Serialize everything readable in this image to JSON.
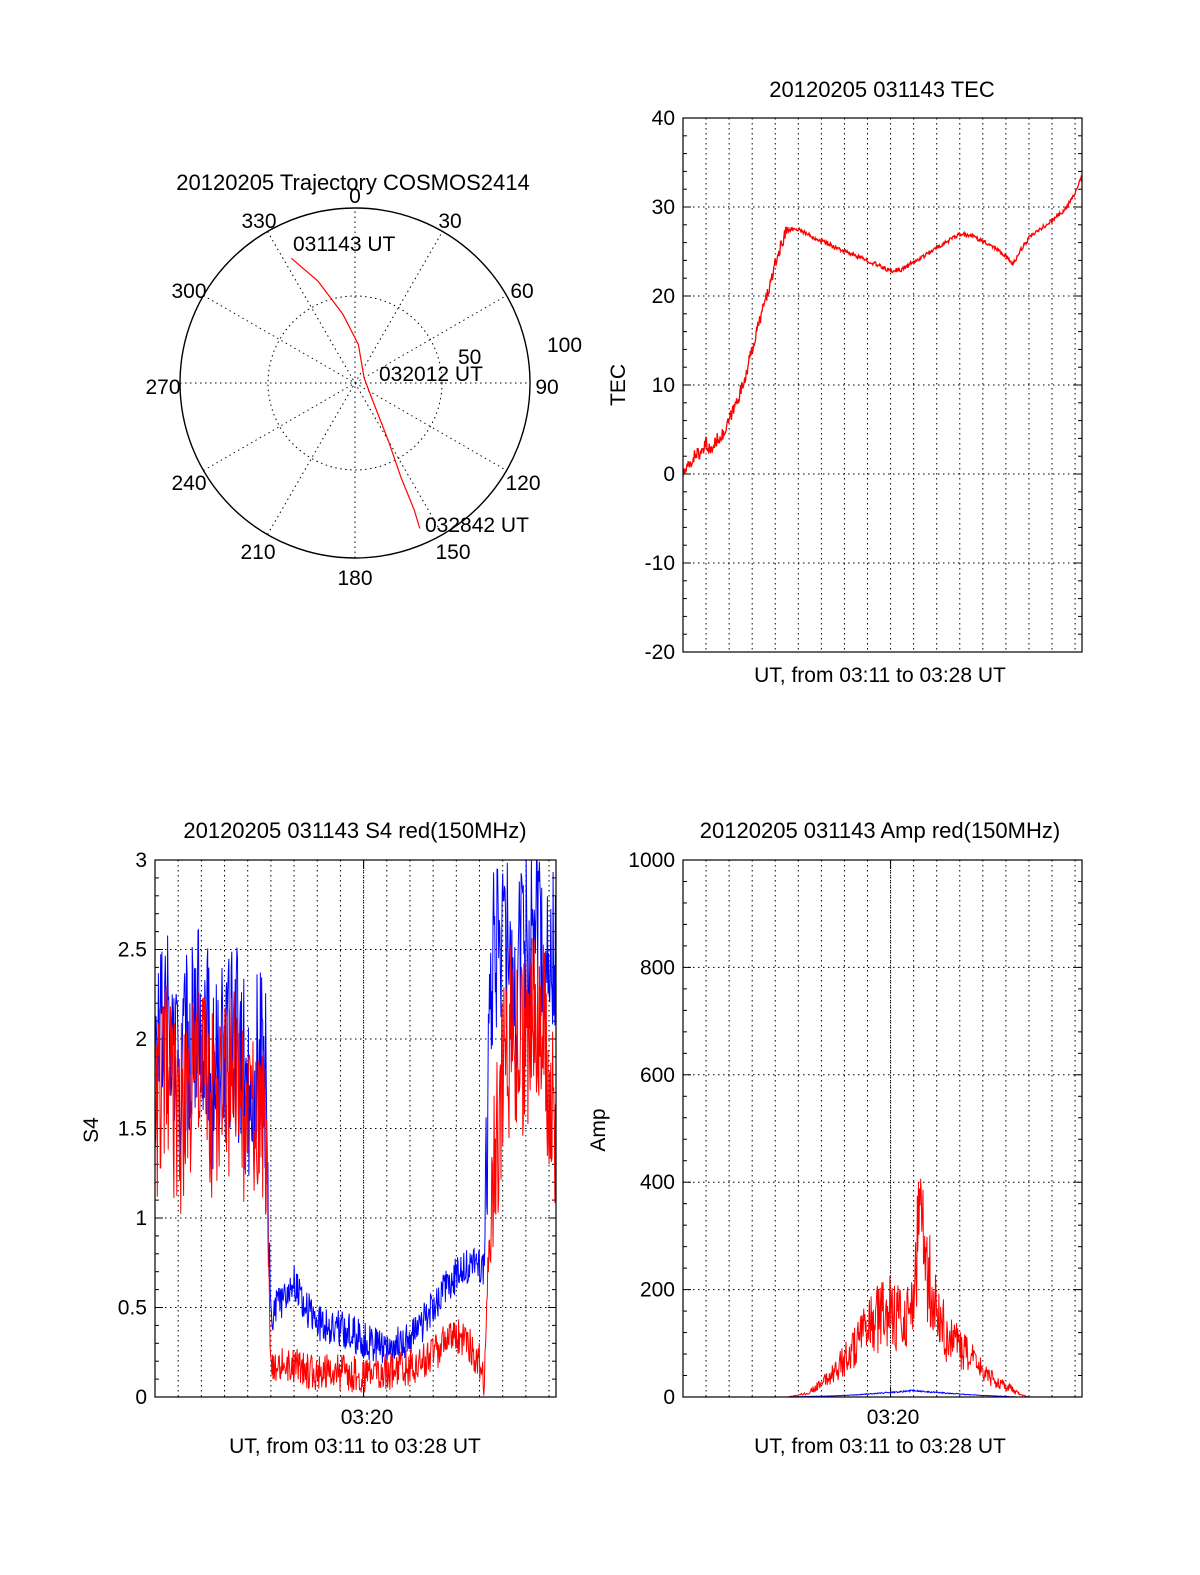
{
  "colors": {
    "red": "#ff0000",
    "blue": "#0000ff"
  },
  "chart_data": [
    {
      "type": "polar",
      "title": "20120205 Trajectory COSMOS2414",
      "azimuth_labels": [
        "0",
        "30",
        "60",
        "90",
        "120",
        "150",
        "180",
        "210",
        "240",
        "270",
        "300",
        "330"
      ],
      "ring_labels": [
        "50",
        "100"
      ],
      "rlim": [
        0,
        100
      ],
      "trajectory": {
        "color": "red",
        "points": [
          {
            "az": 333,
            "zen": 80
          },
          {
            "az": 340,
            "zen": 62
          },
          {
            "az": 350,
            "zen": 40
          },
          {
            "az": 5,
            "zen": 22
          },
          {
            "az": 60,
            "zen": 6
          },
          {
            "az": 130,
            "zen": 12
          },
          {
            "az": 150,
            "zen": 38
          },
          {
            "az": 154,
            "zen": 60
          },
          {
            "az": 155,
            "zen": 80
          },
          {
            "az": 156,
            "zen": 91
          }
        ]
      },
      "annotations": [
        {
          "text": "031143 UT",
          "az": 333,
          "zen": 80
        },
        {
          "text": "032012 UT",
          "az": 60,
          "zen": 6
        },
        {
          "text": "032842 UT",
          "az": 156,
          "zen": 91
        }
      ]
    },
    {
      "type": "line",
      "title": "20120205 031143 TEC",
      "ylabel": "TEC",
      "xlabel": "UT, from 03:11 to 03:28 UT",
      "ylim": [
        -20,
        40
      ],
      "yticks": [
        -20,
        -10,
        0,
        10,
        20,
        30,
        40
      ],
      "xlim": [
        0,
        17.3
      ],
      "grid": true,
      "series": [
        {
          "color": "red",
          "x": [
            0.0,
            0.3,
            0.6,
            0.8,
            1.0,
            1.2,
            1.5,
            1.8,
            2.0,
            2.3,
            2.6,
            3.0,
            3.4,
            3.8,
            4.1,
            4.5,
            5.0,
            5.5,
            6.0,
            6.5,
            7.0,
            7.5,
            8.0,
            8.5,
            9.0,
            9.5,
            10.0,
            10.5,
            11.0,
            11.5,
            12.0,
            12.5,
            13.0,
            13.5,
            14.0,
            14.3,
            14.6,
            15.0,
            15.5,
            16.0,
            16.5,
            17.0,
            17.3
          ],
          "y": [
            0,
            1.0,
            2.5,
            2.0,
            3.5,
            2.5,
            4,
            4.5,
            6,
            8,
            10,
            14,
            18,
            21.5,
            24.5,
            27.5,
            27.5,
            26.8,
            26.2,
            25.6,
            25.0,
            24.5,
            24.0,
            23.4,
            22.8,
            23.0,
            23.8,
            24.6,
            25.4,
            26.2,
            26.9,
            26.8,
            26.2,
            25.5,
            24.5,
            23.5,
            25,
            26.5,
            27.5,
            28.5,
            29.5,
            31.5,
            33.5
          ]
        }
      ]
    },
    {
      "type": "line",
      "title": "20120205 031143 S4 red(150MHz)",
      "ylabel": "S4",
      "xlabel": "UT, from 03:11 to 03:28 UT",
      "x_tick_labels": [
        "03:20"
      ],
      "ylim": [
        0,
        3
      ],
      "yticks": [
        "0",
        "0.5",
        "1",
        "1.5",
        "2",
        "2.5",
        "3"
      ],
      "xlim": [
        0,
        17.3
      ],
      "grid": true,
      "series": [
        {
          "color": "blue",
          "x": [
            0.0,
            0.5,
            1.0,
            1.5,
            2.0,
            2.5,
            3.0,
            3.5,
            4.0,
            4.5,
            4.8,
            5.0,
            5.5,
            6.0,
            6.5,
            7.0,
            7.5,
            8.0,
            8.5,
            9.0,
            9.5,
            10.0,
            10.5,
            11.0,
            11.5,
            12.0,
            12.5,
            13.0,
            13.5,
            14.0,
            14.2,
            14.5,
            15.0,
            15.5,
            16.0,
            16.5,
            17.0,
            17.3
          ],
          "y": [
            1.9,
            2.1,
            1.8,
            2.0,
            2.2,
            1.8,
            1.9,
            2.0,
            1.7,
            1.9,
            1.8,
            0.45,
            0.55,
            0.65,
            0.5,
            0.42,
            0.4,
            0.38,
            0.36,
            0.32,
            0.3,
            0.27,
            0.3,
            0.33,
            0.4,
            0.5,
            0.6,
            0.68,
            0.72,
            0.75,
            0.7,
            2.4,
            2.6,
            2.3,
            2.5,
            2.7,
            2.4,
            2.5
          ]
        },
        {
          "color": "red",
          "x": [
            0.0,
            0.5,
            1.0,
            1.5,
            2.0,
            2.5,
            3.0,
            3.5,
            4.0,
            4.5,
            4.8,
            5.0,
            5.5,
            6.0,
            6.5,
            7.0,
            7.5,
            8.0,
            8.5,
            9.0,
            9.5,
            10.0,
            10.5,
            11.0,
            11.5,
            12.0,
            12.5,
            13.0,
            13.5,
            14.0,
            14.2,
            14.5,
            15.0,
            15.5,
            16.0,
            16.5,
            17.0,
            17.3
          ],
          "y": [
            1.6,
            1.8,
            1.5,
            1.7,
            1.9,
            1.6,
            1.7,
            1.8,
            1.5,
            1.6,
            1.3,
            0.2,
            0.18,
            0.17,
            0.15,
            0.14,
            0.14,
            0.13,
            0.13,
            0.12,
            0.13,
            0.14,
            0.15,
            0.17,
            0.2,
            0.24,
            0.3,
            0.35,
            0.3,
            0.2,
            0.1,
            1.2,
            1.8,
            2.1,
            1.9,
            2.2,
            1.8,
            1.4
          ]
        }
      ]
    },
    {
      "type": "line",
      "title": "20120205 031143 Amp red(150MHz)",
      "ylabel": "Amp",
      "xlabel": "UT, from 03:11 to 03:28 UT",
      "x_tick_labels": [
        "03:20"
      ],
      "ylim": [
        0,
        1000
      ],
      "yticks": [
        0,
        200,
        400,
        600,
        800,
        1000
      ],
      "xlim": [
        0,
        17.3
      ],
      "grid": true,
      "series": [
        {
          "color": "red",
          "x": [
            0,
            4.5,
            5.0,
            5.5,
            6.0,
            6.5,
            7.0,
            7.5,
            8.0,
            8.5,
            9.0,
            9.5,
            10.0,
            10.3,
            10.6,
            11.0,
            11.5,
            12.0,
            12.5,
            13.0,
            13.5,
            14.0,
            14.3,
            14.6,
            15.0,
            17.3
          ],
          "y": [
            0,
            0,
            3,
            10,
            25,
            45,
            70,
            95,
            125,
            150,
            160,
            140,
            190,
            330,
            230,
            150,
            110,
            90,
            70,
            50,
            30,
            20,
            15,
            5,
            0,
            0
          ]
        },
        {
          "color": "blue",
          "x": [
            0,
            4.5,
            5.5,
            6.5,
            7.5,
            8.5,
            9.5,
            10.0,
            10.5,
            11.5,
            12.5,
            13.5,
            14.5,
            17.3
          ],
          "y": [
            0,
            0,
            1,
            2,
            4,
            7,
            10,
            12,
            10,
            7,
            4,
            2,
            0,
            0
          ]
        }
      ]
    }
  ]
}
